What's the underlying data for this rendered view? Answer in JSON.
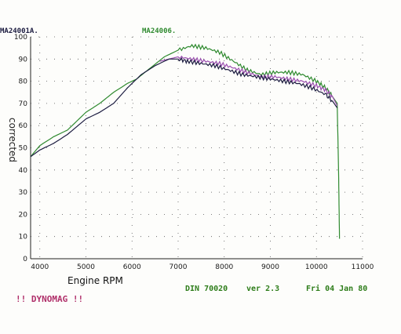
{
  "header": {
    "run_a": "MA24001A.",
    "run_b": "MA24006."
  },
  "footer": {
    "standard": "DIN 70020",
    "version": "ver 2.3",
    "date": "Fri 04 Jan 80",
    "brand": "!! DYNOMAG !!"
  },
  "colors": {
    "run_a": "#1c1c40",
    "run_b": "#2f8a2f",
    "run_c": "#9b4fb0",
    "header_a": "#1c1c40",
    "header_b": "#2f8a2f"
  },
  "chart_data": {
    "type": "line",
    "xlabel": "Engine RPM",
    "ylabel": "corrected",
    "xlim": [
      3800,
      11000
    ],
    "ylim": [
      0,
      100
    ],
    "x_ticks": [
      4000,
      5000,
      6000,
      7000,
      8000,
      9000,
      10000,
      11000
    ],
    "y_ticks": [
      0,
      10,
      20,
      30,
      40,
      50,
      60,
      70,
      80,
      90,
      100
    ],
    "grid": "dotted",
    "series": [
      {
        "name": "MA24001A.",
        "color_key": "run_a",
        "x": [
          3800,
          4000,
          4300,
          4600,
          5000,
          5300,
          5600,
          5900,
          6200,
          6500,
          6800,
          7000,
          7200,
          7500,
          7800,
          8100,
          8400,
          8700,
          9000,
          9300,
          9600,
          9900,
          10200,
          10350,
          10450
        ],
        "y": [
          46,
          49,
          52,
          56,
          63,
          66,
          70,
          77,
          83,
          87,
          90,
          90,
          89,
          88,
          87,
          85,
          83,
          82,
          81,
          80,
          79,
          77,
          74,
          71,
          68
        ]
      },
      {
        "name": "MA24006.",
        "color_key": "run_b",
        "x": [
          3800,
          4000,
          4300,
          4600,
          5000,
          5300,
          5600,
          5900,
          6100,
          6400,
          6700,
          7000,
          7300,
          7600,
          7900,
          8200,
          8500,
          8800,
          9100,
          9400,
          9700,
          10000,
          10200,
          10350,
          10450,
          10480,
          10500
        ],
        "y": [
          46,
          51,
          55,
          58,
          66,
          70,
          75,
          79,
          81,
          86,
          91,
          94,
          96,
          95,
          93,
          89,
          85,
          83,
          84,
          84,
          83,
          80,
          77,
          73,
          70,
          40,
          9
        ]
      },
      {
        "color_key": "run_c",
        "x": [
          6600,
          6800,
          7000,
          7300,
          7600,
          7900,
          8200,
          8500,
          8800,
          9100,
          9400,
          9700,
          10000,
          10200,
          10350,
          10450
        ],
        "y": [
          89,
          90,
          91,
          90,
          89,
          88,
          86,
          84,
          82,
          82,
          81,
          80,
          78,
          76,
          73,
          69
        ]
      }
    ]
  }
}
